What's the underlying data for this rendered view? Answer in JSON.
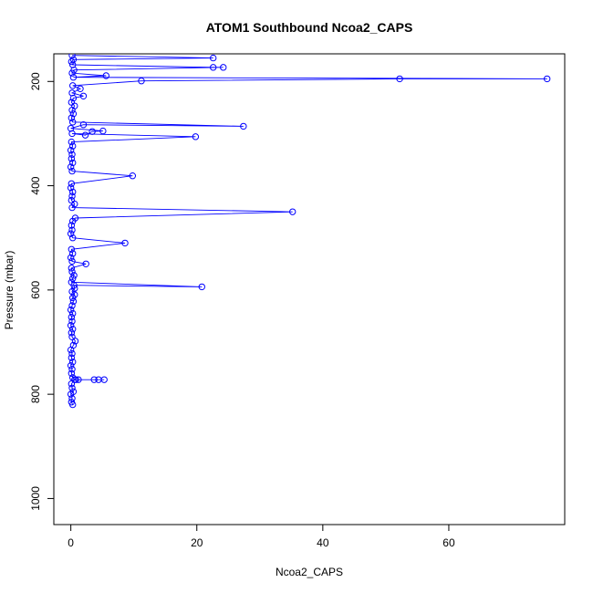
{
  "chart_data": {
    "type": "scatter",
    "title": "ATOM1 Southbound Ncoa2_CAPS",
    "xlabel": "Ncoa2_CAPS",
    "ylabel": "Pressure (mbar)",
    "xlim": [
      -2.7,
      78.4
    ],
    "ylim": [
      1050,
      147
    ],
    "y_reversed": true,
    "x_ticks": [
      0,
      20,
      40,
      60
    ],
    "y_ticks": [
      200,
      400,
      600,
      800,
      1000
    ],
    "grid": false,
    "legend": "none",
    "series_color": "#0000ff",
    "series": [
      {
        "points": [
          [
            0.3,
            820
          ],
          [
            0.1,
            815
          ],
          [
            0.2,
            808
          ],
          [
            0.0,
            800
          ],
          [
            0.4,
            795
          ],
          [
            0.2,
            788
          ],
          [
            0.1,
            780
          ],
          [
            0.6,
            772
          ],
          [
            1.2,
            772
          ],
          [
            3.7,
            772
          ],
          [
            4.4,
            772
          ],
          [
            5.3,
            772
          ],
          [
            0.8,
            772
          ],
          [
            0.3,
            768
          ],
          [
            0.1,
            760
          ],
          [
            0.2,
            752
          ],
          [
            0.0,
            745
          ],
          [
            0.3,
            738
          ],
          [
            0.1,
            730
          ],
          [
            0.2,
            722
          ],
          [
            0.0,
            715
          ],
          [
            0.4,
            706
          ],
          [
            0.7,
            698
          ],
          [
            0.2,
            690
          ],
          [
            0.1,
            682
          ],
          [
            0.3,
            675
          ],
          [
            0.0,
            668
          ],
          [
            0.2,
            660
          ],
          [
            0.1,
            652
          ],
          [
            0.3,
            645
          ],
          [
            0.0,
            638
          ],
          [
            0.2,
            630
          ],
          [
            0.4,
            622
          ],
          [
            0.3,
            615
          ],
          [
            0.6,
            609
          ],
          [
            0.2,
            603
          ],
          [
            0.6,
            597
          ],
          [
            0.5,
            591
          ],
          [
            20.8,
            594
          ],
          [
            0.1,
            585
          ],
          [
            0.3,
            578
          ],
          [
            0.5,
            572
          ],
          [
            0.2,
            565
          ],
          [
            0.1,
            558
          ],
          [
            2.4,
            550
          ],
          [
            0.2,
            545
          ],
          [
            0.0,
            538
          ],
          [
            0.3,
            530
          ],
          [
            0.1,
            522
          ],
          [
            8.6,
            510
          ],
          [
            0.3,
            500
          ],
          [
            0.0,
            492
          ],
          [
            0.2,
            485
          ],
          [
            0.1,
            476
          ],
          [
            0.3,
            468
          ],
          [
            0.7,
            462
          ],
          [
            35.2,
            450
          ],
          [
            0.2,
            442
          ],
          [
            0.6,
            435
          ],
          [
            0.1,
            428
          ],
          [
            0.2,
            420
          ],
          [
            0.3,
            412
          ],
          [
            0.0,
            404
          ],
          [
            0.1,
            396
          ],
          [
            9.8,
            381
          ],
          [
            0.2,
            372
          ],
          [
            0.0,
            364
          ],
          [
            0.3,
            356
          ],
          [
            0.1,
            348
          ],
          [
            0.2,
            340
          ],
          [
            0.0,
            332
          ],
          [
            0.3,
            324
          ],
          [
            0.1,
            316
          ],
          [
            19.8,
            306
          ],
          [
            0.2,
            300
          ],
          [
            2.3,
            303
          ],
          [
            3.4,
            296
          ],
          [
            5.1,
            295
          ],
          [
            0.0,
            290
          ],
          [
            2.0,
            283
          ],
          [
            27.4,
            286
          ],
          [
            0.3,
            278
          ],
          [
            0.1,
            270
          ],
          [
            0.4,
            262
          ],
          [
            0.2,
            255
          ],
          [
            0.6,
            247
          ],
          [
            0.1,
            240
          ],
          [
            0.4,
            232
          ],
          [
            2.0,
            228
          ],
          [
            0.2,
            222
          ],
          [
            1.5,
            214
          ],
          [
            0.3,
            208
          ],
          [
            11.2,
            199
          ],
          [
            52.2,
            195
          ],
          [
            75.6,
            195
          ],
          [
            0.4,
            192
          ],
          [
            5.6,
            189
          ],
          [
            0.2,
            184
          ],
          [
            0.5,
            178
          ],
          [
            24.2,
            173
          ],
          [
            22.6,
            173
          ],
          [
            0.3,
            168
          ],
          [
            0.1,
            162
          ],
          [
            0.4,
            158
          ],
          [
            22.6,
            155
          ],
          [
            0.2,
            150
          ]
        ]
      }
    ]
  }
}
